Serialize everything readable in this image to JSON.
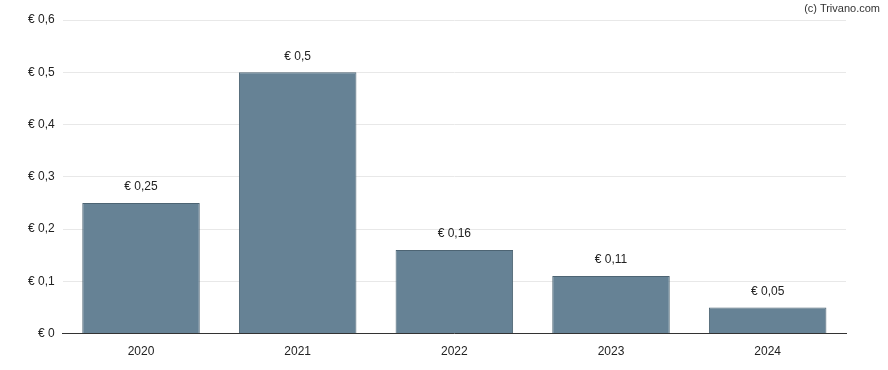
{
  "chart_data": {
    "type": "bar",
    "annotations": [
      "(c) Trivano.com"
    ],
    "categories": [
      "2020",
      "2021",
      "2022",
      "2023",
      "2024"
    ],
    "values": [
      0.25,
      0.5,
      0.16,
      0.11,
      0.05
    ],
    "value_labels": [
      "€ 0,25",
      "€ 0,5",
      "€ 0,16",
      "€ 0,11",
      "€ 0,05"
    ],
    "data_labels": true,
    "color": "#668295",
    "ylim": [
      0,
      0.6
    ],
    "yticks": [
      {
        "value": 0,
        "label": "€ 0"
      },
      {
        "value": 0.1,
        "label": "€ 0,1"
      },
      {
        "value": 0.2,
        "label": "€ 0,2"
      },
      {
        "value": 0.3,
        "label": "€ 0,3"
      },
      {
        "value": 0.4,
        "label": "€ 0,4"
      },
      {
        "value": 0.5,
        "label": "€ 0,5"
      },
      {
        "value": 0.6,
        "label": "€ 0,6"
      }
    ],
    "grid": true
  }
}
